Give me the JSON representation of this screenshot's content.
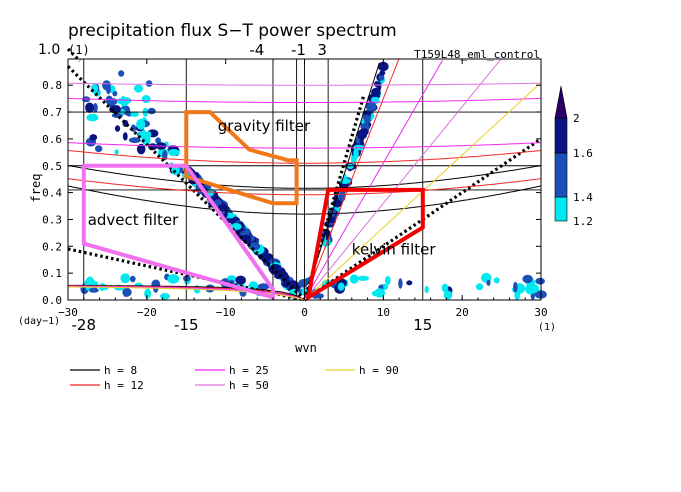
{
  "chart_data": {
    "type": "heatmap",
    "title": "precipitation flux S−T power spectrum",
    "run_label": "T159L48_eml_control",
    "xlabel": "wvn",
    "ylabel": "freq",
    "x_unit": "(1)",
    "y_unit": "(day−1)",
    "xlim": [
      -30,
      30
    ],
    "ylim": [
      0,
      0.9
    ],
    "xticks": [
      -30,
      -20,
      -10,
      0,
      10,
      20,
      30
    ],
    "xtick_labels": [
      "−30",
      "−20",
      "−10",
      "0",
      "10",
      "20",
      "30"
    ],
    "yticks": [
      0.0,
      0.1,
      0.2,
      0.3,
      0.4,
      0.5,
      0.6,
      0.7,
      0.8
    ],
    "ytick_labels": [
      "0.0",
      "0.1",
      "0.2",
      "0.3",
      "0.4",
      "0.5",
      "0.6",
      "0.7",
      "0.8"
    ],
    "colorbar": {
      "levels": [
        1.2,
        1.4,
        1.6,
        2
      ],
      "labels": [
        "1.2",
        "1.4",
        "1.6",
        "2"
      ],
      "colors": [
        "#00e8f0",
        "#1a50b8",
        "#0a1480",
        "#280068"
      ]
    },
    "annotations": {
      "freq_top": "1.0",
      "freq_top_unit": "(1)",
      "wvn_top_labels": [
        "-4",
        "-1",
        "3"
      ],
      "wvn_bottom_labels": [
        "-28",
        "-15",
        "15"
      ]
    },
    "reference_lines": {
      "vertical_x": [
        -28,
        -15,
        -4,
        -1,
        3,
        15
      ],
      "horizontal_y": [
        0.7,
        0.5,
        0.41
      ]
    },
    "filters": [
      {
        "name": "gravity filter",
        "color": "#f07818",
        "polygon": [
          [
            -15,
            0.7
          ],
          [
            -12,
            0.7
          ],
          [
            -7,
            0.56
          ],
          [
            -2,
            0.52
          ],
          [
            -1,
            0.52
          ],
          [
            -1,
            0.36
          ],
          [
            -4,
            0.36
          ],
          [
            -15,
            0.46
          ]
        ]
      },
      {
        "name": "advect filter",
        "color": "#f070f0",
        "polygon": [
          [
            -28,
            0.5
          ],
          [
            -15,
            0.5
          ],
          [
            -4,
            0.04
          ],
          [
            -4,
            0.01
          ],
          [
            -28,
            0.21
          ]
        ]
      },
      {
        "name": "kelvin filter",
        "color": "#f00000",
        "polygon": [
          [
            0.5,
            0.01
          ],
          [
            3,
            0.41
          ],
          [
            15,
            0.41
          ],
          [
            15,
            0.27
          ]
        ]
      }
    ],
    "dispersion_legend": [
      {
        "label": "h =  8",
        "color": "#000000"
      },
      {
        "label": "h = 12",
        "color": "#f02828"
      },
      {
        "label": "h = 25",
        "color": "#f028f0"
      },
      {
        "label": "h = 50",
        "color": "#e070e0"
      },
      {
        "label": "h = 90",
        "color": "#e8d020"
      }
    ]
  }
}
